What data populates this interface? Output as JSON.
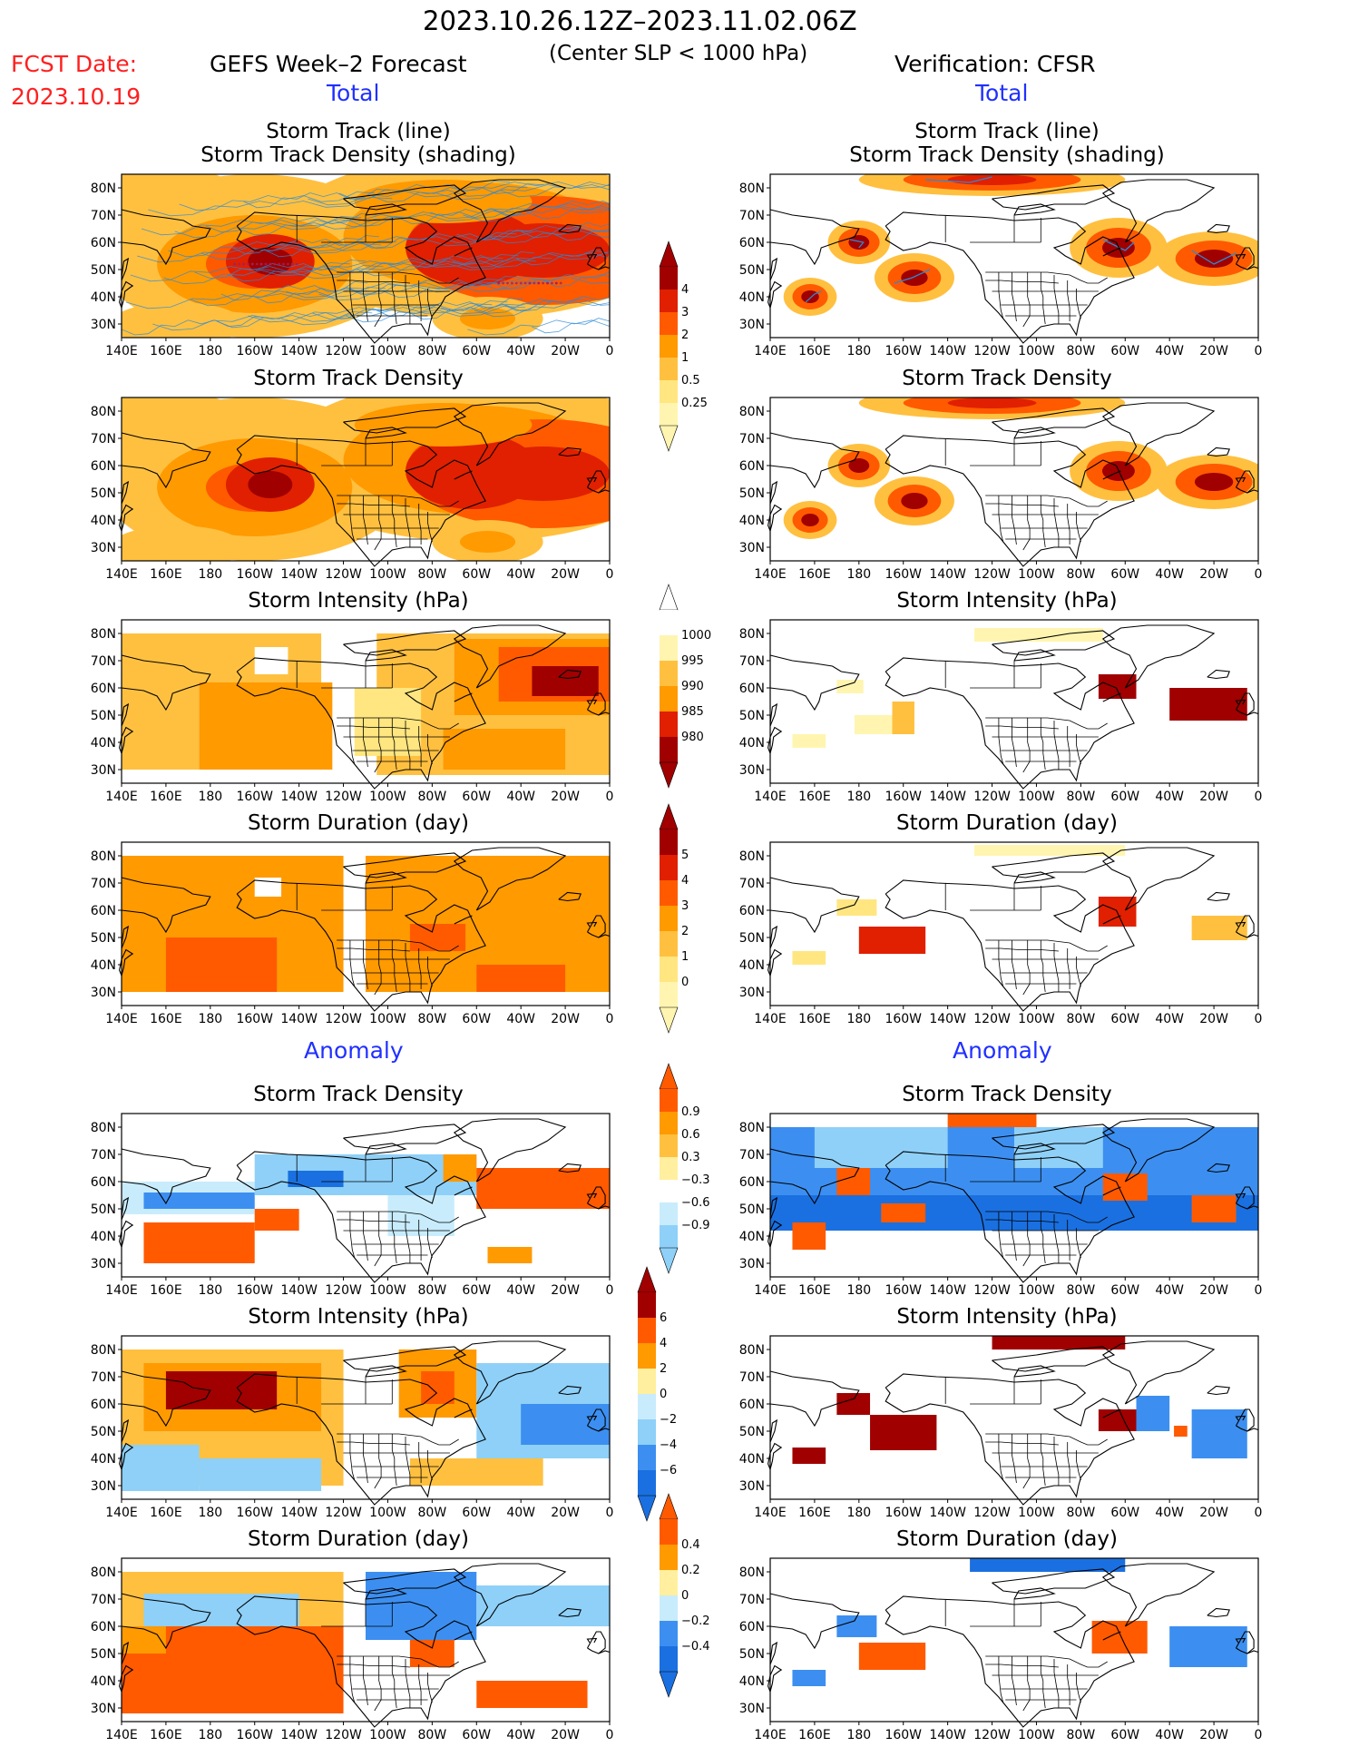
{
  "header": {
    "period": "2023.10.26.12Z–2023.11.02.06Z",
    "subtitle": "(Center SLP < 1000 hPa)",
    "fcst_label": "FCST Date:",
    "fcst_date": "2023.10.19",
    "left_title": "GEFS Week–2 Forecast",
    "right_title": "Verification: CFSR",
    "section_total": "Total",
    "section_anomaly": "Anomaly"
  },
  "axes": {
    "lon_labels": [
      "140E",
      "160E",
      "180",
      "160W",
      "140W",
      "120W",
      "100W",
      "80W",
      "60W",
      "40W",
      "20W",
      "0"
    ],
    "lat_labels": [
      "80N",
      "70N",
      "60N",
      "50N",
      "40N",
      "30N"
    ]
  },
  "panel_titles": {
    "track_line": "Storm Track (line)",
    "track_shading": "Storm Track Density (shading)",
    "density": "Storm Track Density",
    "intensity": "Storm Intensity (hPa)",
    "duration": "Storm Duration (day)"
  },
  "colorbars": {
    "density_total": [
      "4",
      "3",
      "2",
      "1",
      "0.5",
      "0.25"
    ],
    "intensity_total": [
      "1000",
      "995",
      "990",
      "985",
      "980"
    ],
    "duration_total": [
      "5",
      "4",
      "3",
      "2",
      "1",
      "0"
    ],
    "density_anom": [
      "0.9",
      "0.6",
      "0.3",
      "−0.3",
      "−0.6",
      "−0.9"
    ],
    "intensity_anom": [
      "6",
      "4",
      "2",
      "0",
      "−2",
      "−4",
      "−6"
    ],
    "duration_anom": [
      "0.4",
      "0.2",
      "0",
      "−0.2",
      "−0.4"
    ]
  },
  "colors": {
    "total_scale": [
      "#fff5b0",
      "#ffe680",
      "#ffc040",
      "#ff9a00",
      "#ff5a00",
      "#e02000",
      "#a00000"
    ],
    "anom_scale": [
      "#1a70e0",
      "#3c8ff0",
      "#8ed0f8",
      "#c8ecfc",
      "#ffffff",
      "#ffef9e",
      "#ffc040",
      "#ff9a00",
      "#ff5a00",
      "#a00000"
    ],
    "track_line": "#2a8ad8"
  }
}
